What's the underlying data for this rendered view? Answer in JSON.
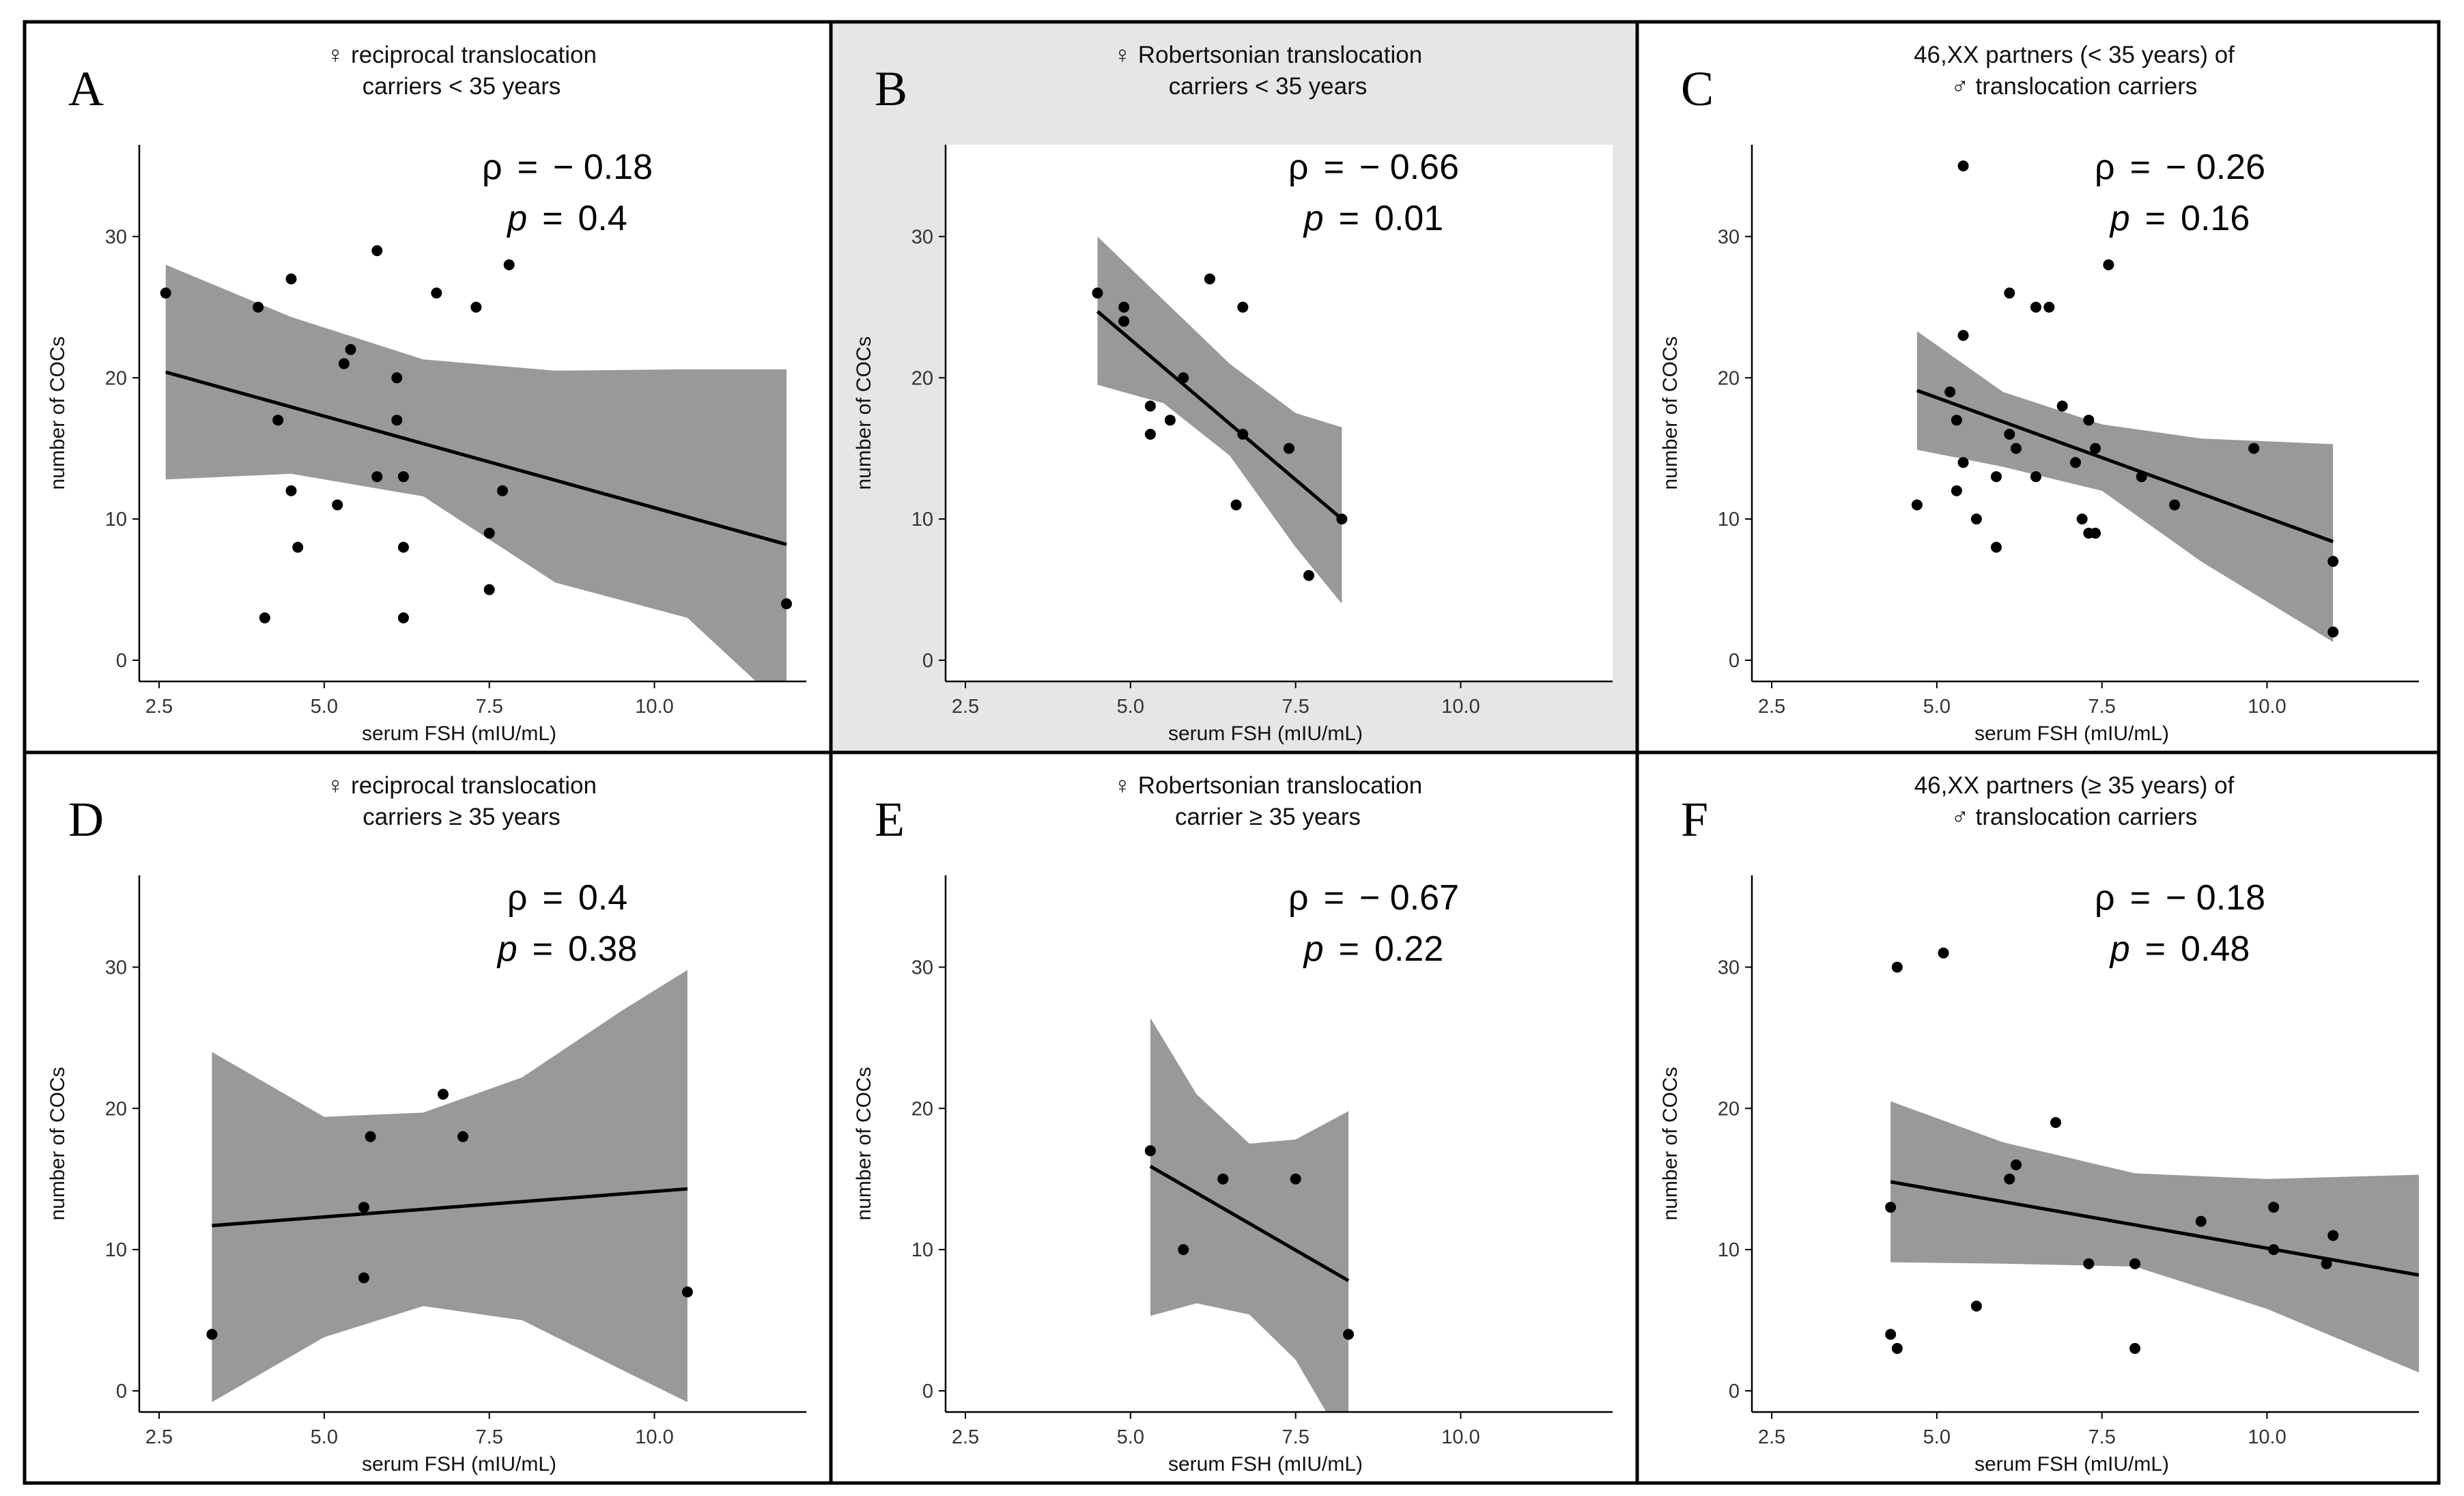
{
  "figure": {
    "x_axis_label": "serum FSH (mIU/mL)",
    "y_axis_label": "number of COCs",
    "x_ticks": [
      "2.5",
      "5.0",
      "7.5",
      "10.0"
    ],
    "y_ticks": [
      "0",
      "10",
      "20",
      "30"
    ],
    "rho_symbol": "ρ",
    "p_symbol": "p",
    "equals": "=",
    "colors": {
      "band": "#999999",
      "line": "#000000",
      "point": "#000000",
      "highlight_bg": "#e6e6e6",
      "border": "#000000"
    }
  },
  "chart_data": [
    {
      "type": "scatter",
      "letter": "A",
      "title_lines": [
        "♀ reciprocal translocation",
        "carriers < 35 years"
      ],
      "rho": "− 0.18",
      "p": "0.4",
      "xlabel": "serum FSH (mIU/mL)",
      "ylabel": "number of COCs",
      "xlim": [
        2.2,
        12.3
      ],
      "ylim": [
        -1.5,
        36.5
      ],
      "highlighted": false,
      "x": [
        2.6,
        4.0,
        4.1,
        4.3,
        4.5,
        4.5,
        4.6,
        5.2,
        5.3,
        5.4,
        5.8,
        5.8,
        6.1,
        6.1,
        6.2,
        6.2,
        6.2,
        6.7,
        7.3,
        7.5,
        7.5,
        7.7,
        7.8,
        12.0
      ],
      "y": [
        26,
        25,
        3,
        17,
        27,
        12,
        8,
        11,
        21,
        22,
        29,
        13,
        20,
        17,
        13,
        8,
        3,
        26,
        25,
        9,
        5,
        12,
        28,
        4
      ],
      "fit": {
        "x": [
          2.6,
          12.0
        ],
        "y": [
          20.4,
          8.2
        ]
      },
      "band": {
        "x": [
          2.6,
          4.5,
          6.5,
          8.5,
          10.5,
          12.0
        ],
        "upper": [
          28.0,
          24.3,
          21.3,
          20.5,
          20.6,
          20.6
        ],
        "lower": [
          12.8,
          13.2,
          11.6,
          5.5,
          3.0,
          -3.5
        ]
      }
    },
    {
      "type": "scatter",
      "letter": "B",
      "title_lines": [
        "♀ Robertsonian translocation",
        "carriers < 35 years"
      ],
      "rho": "− 0.66",
      "p": "0.01",
      "xlabel": "serum FSH (mIU/mL)",
      "ylabel": "number of COCs",
      "xlim": [
        2.2,
        12.3
      ],
      "ylim": [
        -1.5,
        36.5
      ],
      "highlighted": true,
      "x": [
        4.5,
        4.9,
        4.9,
        5.3,
        5.3,
        5.6,
        5.8,
        6.2,
        6.6,
        6.7,
        6.7,
        7.4,
        7.7,
        8.2
      ],
      "y": [
        26,
        25,
        24,
        18,
        16,
        17,
        20,
        27,
        11,
        25,
        16,
        15,
        6,
        10
      ],
      "fit": {
        "x": [
          4.5,
          8.2
        ],
        "y": [
          24.7,
          10.0
        ]
      },
      "band": {
        "x": [
          4.5,
          5.5,
          6.5,
          7.5,
          8.2
        ],
        "upper": [
          30.0,
          25.5,
          21.0,
          17.5,
          16.5
        ],
        "lower": [
          19.5,
          18.2,
          14.5,
          8.0,
          4.0
        ]
      }
    },
    {
      "type": "scatter",
      "letter": "C",
      "title_lines": [
        "46,XX partners (< 35 years) of",
        "♂ translocation carriers"
      ],
      "rho": "− 0.26",
      "p": "0.16",
      "xlabel": "serum FSH (mIU/mL)",
      "ylabel": "number of COCs",
      "xlim": [
        2.2,
        12.3
      ],
      "ylim": [
        -1.5,
        36.5
      ],
      "highlighted": false,
      "x": [
        4.7,
        5.2,
        5.3,
        5.3,
        5.4,
        5.4,
        5.4,
        5.6,
        5.9,
        5.9,
        6.1,
        6.1,
        6.2,
        6.5,
        6.5,
        6.7,
        6.9,
        7.1,
        7.2,
        7.3,
        7.3,
        7.4,
        7.4,
        7.6,
        8.1,
        8.6,
        9.8,
        11.0,
        11.0
      ],
      "y": [
        11,
        19,
        12,
        17,
        23,
        35,
        14,
        10,
        13,
        8,
        16,
        26,
        15,
        25,
        13,
        25,
        18,
        14,
        10,
        17,
        9,
        9,
        15,
        28,
        13,
        11,
        15,
        7,
        2
      ],
      "fit": {
        "x": [
          4.7,
          11.0
        ],
        "y": [
          19.1,
          8.4
        ]
      },
      "band": {
        "x": [
          4.7,
          6.0,
          7.5,
          9.0,
          11.0
        ],
        "upper": [
          23.3,
          19.0,
          16.7,
          15.7,
          15.3
        ],
        "lower": [
          14.9,
          13.7,
          12.0,
          7.0,
          1.3
        ]
      }
    },
    {
      "type": "scatter",
      "letter": "D",
      "title_lines": [
        "♀ reciprocal translocation",
        "carriers ≥ 35 years"
      ],
      "rho": "0.4",
      "p": "0.38",
      "xlabel": "serum FSH (mIU/mL)",
      "ylabel": "number of COCs",
      "xlim": [
        2.2,
        12.3
      ],
      "ylim": [
        -1.5,
        36.5
      ],
      "highlighted": false,
      "x": [
        3.3,
        5.6,
        5.6,
        5.7,
        6.8,
        7.1,
        10.5
      ],
      "y": [
        4,
        13,
        8,
        18,
        21,
        18,
        7
      ],
      "fit": {
        "x": [
          3.3,
          10.5
        ],
        "y": [
          11.7,
          14.3
        ]
      },
      "band": {
        "x": [
          3.3,
          5.0,
          6.5,
          8.0,
          9.5,
          10.5
        ],
        "upper": [
          24.0,
          19.4,
          19.7,
          22.2,
          26.9,
          29.8
        ],
        "lower": [
          -0.8,
          3.8,
          6.0,
          5.0,
          1.5,
          -0.8
        ]
      }
    },
    {
      "type": "scatter",
      "letter": "E",
      "title_lines": [
        "♀ Robertsonian translocation",
        "carrier ≥ 35 years"
      ],
      "rho": "− 0.67",
      "p": "0.22",
      "xlabel": "serum FSH (mIU/mL)",
      "ylabel": "number of COCs",
      "xlim": [
        2.2,
        12.3
      ],
      "ylim": [
        -1.5,
        36.5
      ],
      "highlighted": false,
      "x": [
        5.3,
        5.8,
        6.4,
        7.5,
        8.3
      ],
      "y": [
        17,
        10,
        15,
        15,
        4
      ],
      "fit": {
        "x": [
          5.3,
          8.3
        ],
        "y": [
          15.9,
          7.8
        ]
      },
      "band": {
        "x": [
          5.3,
          6.0,
          6.8,
          7.5,
          8.3
        ],
        "upper": [
          26.4,
          21.0,
          17.5,
          17.8,
          19.8
        ],
        "lower": [
          5.3,
          6.2,
          5.4,
          2.2,
          -4.2
        ]
      }
    },
    {
      "type": "scatter",
      "letter": "F",
      "title_lines": [
        "46,XX partners (≥ 35 years) of",
        "♂ translocation carriers"
      ],
      "rho": "− 0.18",
      "p": "0.48",
      "xlabel": "serum FSH (mIU/mL)",
      "ylabel": "number of COCs",
      "xlim": [
        2.2,
        12.3
      ],
      "ylim": [
        -1.5,
        36.5
      ],
      "highlighted": false,
      "x": [
        4.3,
        4.3,
        4.4,
        4.4,
        5.1,
        5.6,
        6.1,
        6.2,
        6.8,
        7.3,
        8.0,
        8.0,
        9.0,
        10.1,
        10.1,
        10.9,
        11.0
      ],
      "y": [
        13,
        4,
        3,
        30,
        31,
        6,
        15,
        16,
        19,
        9,
        9,
        3,
        12,
        13,
        10,
        9,
        11
      ],
      "fit": {
        "x": [
          4.3,
          12.3
        ],
        "y": [
          14.8,
          8.2
        ]
      },
      "band": {
        "x": [
          4.3,
          6.0,
          8.0,
          10.0,
          12.3
        ],
        "upper": [
          20.5,
          17.6,
          15.4,
          15.0,
          15.3
        ],
        "lower": [
          9.1,
          9.0,
          8.8,
          5.8,
          1.3
        ]
      }
    }
  ]
}
